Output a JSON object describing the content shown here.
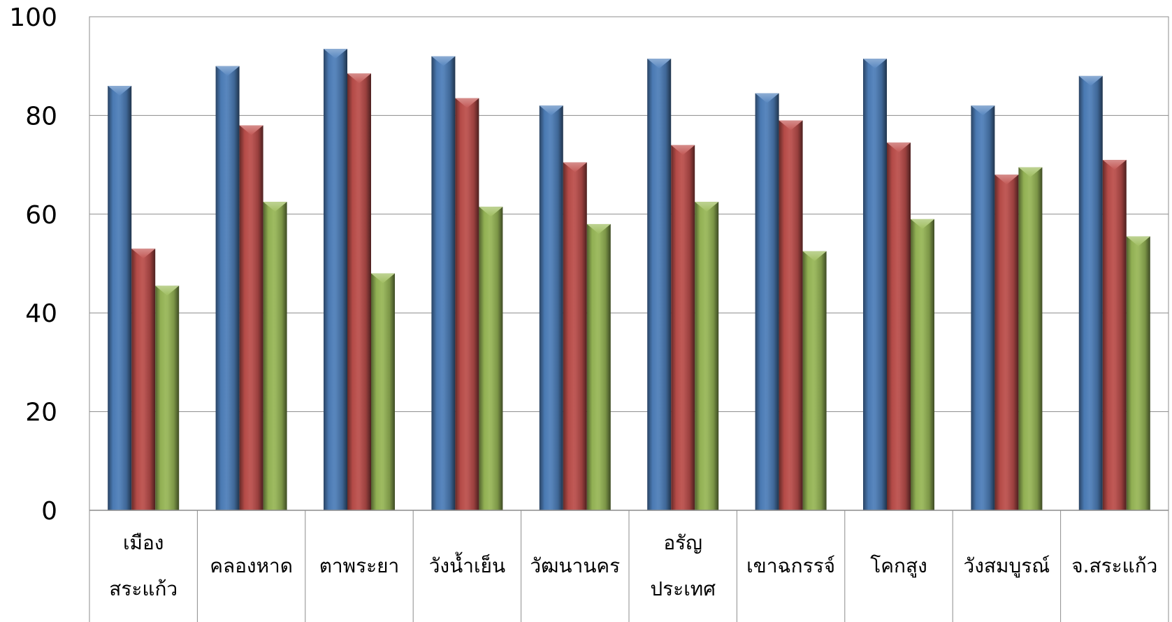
{
  "chart_data": {
    "type": "bar",
    "categories": [
      [
        "เมือง",
        "สระแก้ว"
      ],
      [
        "คลองหาด"
      ],
      [
        "ตาพระยา"
      ],
      [
        "วังน้ำเย็น"
      ],
      [
        "วัฒนานคร"
      ],
      [
        "อรัญ",
        "ประเทศ"
      ],
      [
        "เขาฉกรรจ์"
      ],
      [
        "โคกสูง"
      ],
      [
        "วังสมบูรณ์"
      ],
      [
        "จ.สระแก้ว"
      ]
    ],
    "series": [
      {
        "color": "#4F81BD",
        "values": [
          86,
          90,
          93.5,
          92,
          82,
          91.5,
          84.5,
          91.5,
          82,
          88
        ]
      },
      {
        "color": "#C0504D",
        "values": [
          53,
          78,
          88.5,
          83.5,
          70.5,
          74,
          79,
          74.5,
          68,
          71
        ]
      },
      {
        "color": "#9BBB59",
        "values": [
          45.5,
          62.5,
          48,
          61.5,
          58,
          62.5,
          52.5,
          59,
          69.5,
          55.5
        ]
      }
    ],
    "yticks": [
      "0",
      "20",
      "40",
      "60",
      "80",
      "100"
    ],
    "ylim": [
      0,
      100
    ],
    "grid": true,
    "legend": "none"
  }
}
